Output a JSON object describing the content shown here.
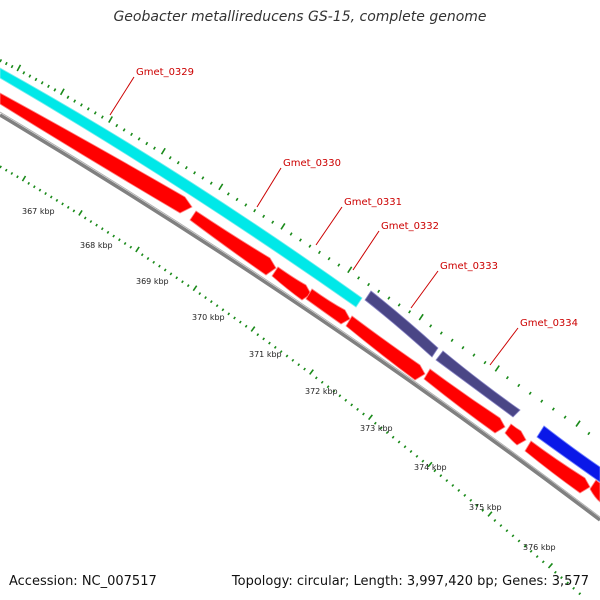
{
  "title": "Geobacter metallireducens GS-15, complete genome",
  "footer": {
    "accession": "Accession: NC_007517",
    "summary": "Topology: circular; Length: 3,997,420 bp; Genes: 3,577"
  },
  "colors": {
    "cds_forward": "#00e8e8",
    "cds_dark": "#4a4686",
    "cds_blue": "#0a18e8",
    "cds_reverse": "#ff0000",
    "backbone": "#808080",
    "tick": "#1a8a1a",
    "label": "#cc0000"
  },
  "gene_labels": [
    {
      "name": "Gmet_0329"
    },
    {
      "name": "Gmet_0330"
    },
    {
      "name": "Gmet_0331"
    },
    {
      "name": "Gmet_0332"
    },
    {
      "name": "Gmet_0333"
    },
    {
      "name": "Gmet_0334"
    }
  ],
  "kbp_labels": [
    "367 kbp",
    "368 kbp",
    "369 kbp",
    "370 kbp",
    "371 kbp",
    "372 kbp",
    "373 kbp",
    "374 kbp",
    "375 kbp",
    "376 kbp"
  ]
}
